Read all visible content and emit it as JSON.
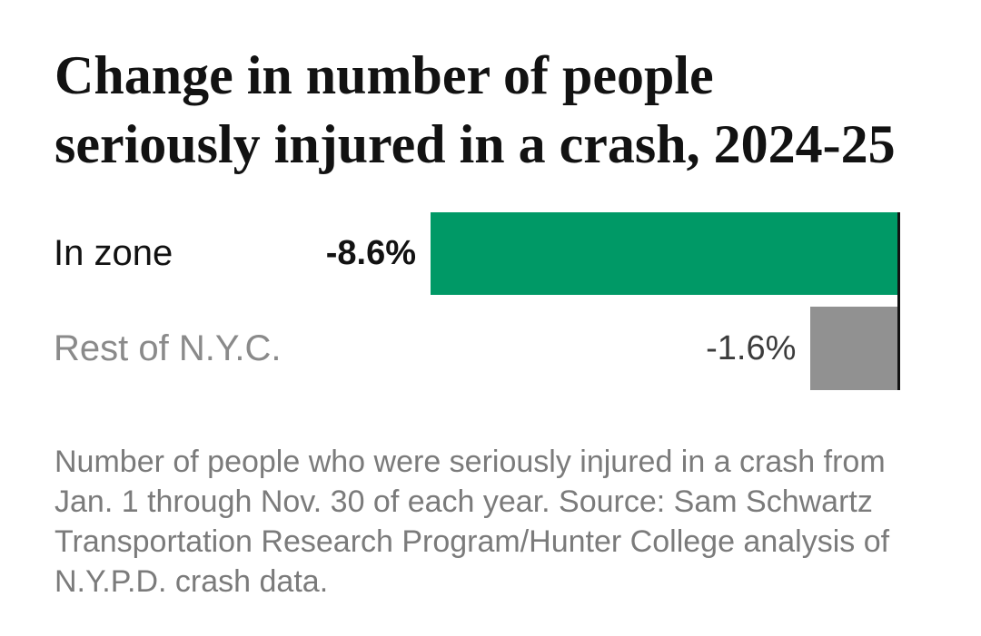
{
  "chart_data": {
    "type": "bar",
    "orientation": "horizontal",
    "title": "Change in number of people seriously injured in a crash, 2024-25",
    "title_lines": [
      "Change in number of people",
      "seriously injured in a crash, 2024-25"
    ],
    "categories": [
      "In zone",
      "Rest of N.Y.C."
    ],
    "values": [
      -8.6,
      -1.6
    ],
    "value_labels": [
      "-8.6%",
      "-1.6%"
    ],
    "xlim": [
      -8.6,
      0
    ],
    "legend": false,
    "grid": false,
    "note": "Number of people who were seriously injured in a crash from Jan. 1 through Nov. 30 of each year. Source: Sam Schwartz Transportation Research Program/Hunter College analysis of N.Y.P.D. crash data.",
    "colors": {
      "bar_in_zone": "#009966",
      "bar_rest_of_nyc": "#919191",
      "axis_line": "#121212",
      "title_text": "#121212",
      "label_in_zone": "#121212",
      "label_rest_of_nyc": "#8a8a8a",
      "value_in_zone": "#121212",
      "value_rest_of_nyc": "#3c3c3c",
      "note_text": "#7b7b7b",
      "background": "#ffffff"
    }
  },
  "title": {
    "line1": "Change in number of people",
    "line2": "seriously injured in a crash, 2024-25"
  },
  "rows": [
    {
      "label": "In zone",
      "value_label": "-8.6%"
    },
    {
      "label": "Rest of N.Y.C.",
      "value_label": "-1.6%"
    }
  ],
  "note": {
    "text": "Number of people who were seriously injured in a crash from Jan. 1 through Nov. 30 of each year. Source: Sam Schwartz Transportation Research Program/Hunter College analysis of N.Y.P.D. crash data."
  }
}
